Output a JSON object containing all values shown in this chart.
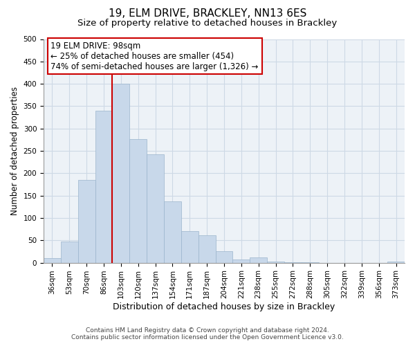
{
  "title": "19, ELM DRIVE, BRACKLEY, NN13 6ES",
  "subtitle": "Size of property relative to detached houses in Brackley",
  "xlabel": "Distribution of detached houses by size in Brackley",
  "ylabel": "Number of detached properties",
  "bar_labels": [
    "36sqm",
    "53sqm",
    "70sqm",
    "86sqm",
    "103sqm",
    "120sqm",
    "137sqm",
    "154sqm",
    "171sqm",
    "187sqm",
    "204sqm",
    "221sqm",
    "238sqm",
    "255sqm",
    "272sqm",
    "288sqm",
    "305sqm",
    "322sqm",
    "339sqm",
    "356sqm",
    "373sqm"
  ],
  "bar_values": [
    10,
    47,
    185,
    340,
    400,
    277,
    242,
    137,
    70,
    62,
    26,
    7,
    12,
    2,
    1,
    1,
    0,
    0,
    0,
    0,
    2
  ],
  "bar_color": "#c8d8ea",
  "bar_edge_color": "#9ab4cc",
  "vline_x_index": 4,
  "vline_color": "#cc0000",
  "annotation_line1": "19 ELM DRIVE: 98sqm",
  "annotation_line2": "← 25% of detached houses are smaller (454)",
  "annotation_line3": "74% of semi-detached houses are larger (1,326) →",
  "annotation_box_edge_color": "#cc0000",
  "annotation_box_facecolor": "#ffffff",
  "ylim": [
    0,
    500
  ],
  "yticks": [
    0,
    50,
    100,
    150,
    200,
    250,
    300,
    350,
    400,
    450,
    500
  ],
  "footer_line1": "Contains HM Land Registry data © Crown copyright and database right 2024.",
  "footer_line2": "Contains public sector information licensed under the Open Government Licence v3.0.",
  "grid_color": "#cdd9e5",
  "background_color": "#edf2f7",
  "title_fontsize": 11,
  "subtitle_fontsize": 9.5,
  "xlabel_fontsize": 9,
  "ylabel_fontsize": 8.5,
  "tick_fontsize": 7.5,
  "annotation_fontsize": 8.5,
  "footer_fontsize": 6.5
}
